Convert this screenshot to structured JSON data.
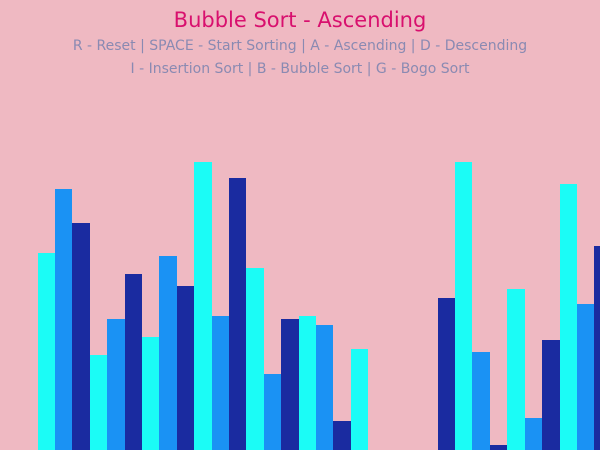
{
  "title": "Bubble Sort - Ascending",
  "help_lines": [
    "R - Reset | SPACE - Start Sorting | A - Ascending | D - Descending",
    "I - Insertion Sort | B - Bubble Sort | G - Bogo Sort"
  ],
  "colors": {
    "background": "#efb9c2",
    "title": "#d8106e",
    "help_text": "#8a8ab2",
    "bar_palette": [
      "#1bfcf6",
      "#1a92f4",
      "#1a2ba0"
    ]
  },
  "bars": [
    {
      "value": 197,
      "color": "#1bfcf6"
    },
    {
      "value": 261,
      "color": "#1a92f4"
    },
    {
      "value": 227,
      "color": "#1a2ba0"
    },
    {
      "value": 95,
      "color": "#1bfcf6"
    },
    {
      "value": 131,
      "color": "#1a92f4"
    },
    {
      "value": 176,
      "color": "#1a2ba0"
    },
    {
      "value": 113,
      "color": "#1bfcf6"
    },
    {
      "value": 194,
      "color": "#1a92f4"
    },
    {
      "value": 164,
      "color": "#1a2ba0"
    },
    {
      "value": 288,
      "color": "#1bfcf6"
    },
    {
      "value": 134,
      "color": "#1a92f4"
    },
    {
      "value": 272,
      "color": "#1a2ba0"
    },
    {
      "value": 182,
      "color": "#1bfcf6"
    },
    {
      "value": 76,
      "color": "#1a92f4"
    },
    {
      "value": 131,
      "color": "#1a2ba0"
    },
    {
      "value": 134,
      "color": "#1bfcf6"
    },
    {
      "value": 125,
      "color": "#1a92f4"
    },
    {
      "value": 29,
      "color": "#1a2ba0"
    },
    {
      "value": 101,
      "color": "#1bfcf6"
    },
    {
      "value": 0,
      "color": "#1a92f4"
    },
    {
      "value": 0,
      "color": "#1a2ba0"
    },
    {
      "value": 0,
      "color": "#1bfcf6"
    },
    {
      "value": 0,
      "color": "#1a92f4"
    },
    {
      "value": 152,
      "color": "#1a2ba0"
    },
    {
      "value": 288,
      "color": "#1bfcf6"
    },
    {
      "value": 98,
      "color": "#1a92f4"
    },
    {
      "value": 5,
      "color": "#1a2ba0"
    },
    {
      "value": 161,
      "color": "#1bfcf6"
    },
    {
      "value": 32,
      "color": "#1a92f4"
    },
    {
      "value": 110,
      "color": "#1a2ba0"
    },
    {
      "value": 266,
      "color": "#1bfcf6"
    },
    {
      "value": 146,
      "color": "#1a92f4"
    },
    {
      "value": 204,
      "color": "#1a2ba0"
    }
  ]
}
